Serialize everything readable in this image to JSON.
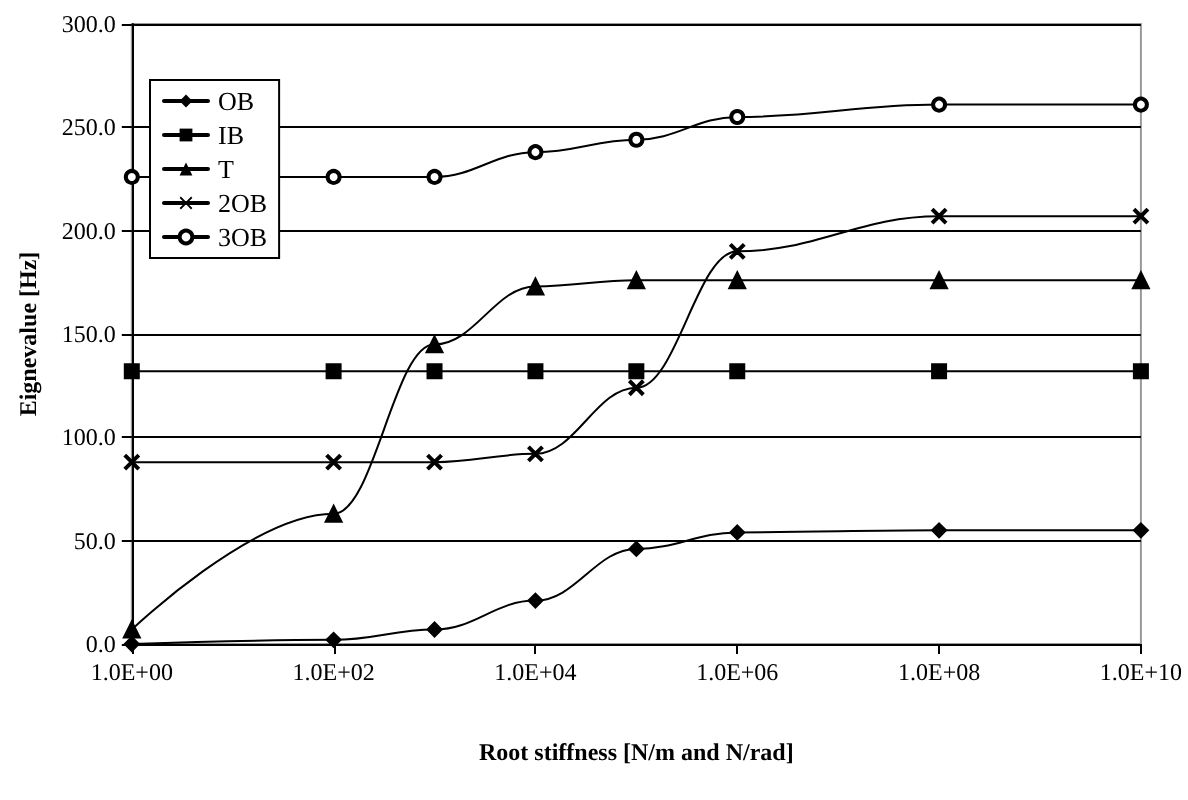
{
  "chart_data": {
    "type": "line",
    "xlabel": "Root stiffness [N/m and N/rad]",
    "ylabel": "Eignevalue [Hz]",
    "x": [
      1,
      100,
      1000,
      10000,
      100000,
      1000000,
      100000000,
      10000000000
    ],
    "series": [
      {
        "name": "OB",
        "color": "#000000",
        "marker": "diamond",
        "values": [
          0,
          2,
          7,
          21,
          46,
          54,
          55,
          55
        ]
      },
      {
        "name": "IB",
        "color": "#000000",
        "marker": "square",
        "values": [
          132,
          132,
          132,
          132,
          132,
          132,
          132,
          132
        ]
      },
      {
        "name": "T",
        "color": "#000000",
        "marker": "triangle",
        "values": [
          7,
          63,
          145,
          173,
          176,
          176,
          176,
          176
        ]
      },
      {
        "name": "2OB",
        "color": "#000000",
        "marker": "cross",
        "values": [
          88,
          88,
          88,
          92,
          124,
          190,
          207,
          207
        ]
      },
      {
        "name": "3OB",
        "color": "#000000",
        "marker": "circle",
        "values": [
          226,
          226,
          226,
          238,
          244,
          255,
          261,
          261
        ]
      }
    ],
    "log": "x",
    "xlim": [
      1,
      10000000000
    ],
    "xticks": [
      {
        "value": 1,
        "label": "1.0E+00"
      },
      {
        "value": 100,
        "label": "1.0E+02"
      },
      {
        "value": 10000,
        "label": "1.0E+04"
      },
      {
        "value": 1000000,
        "label": "1.0E+06"
      },
      {
        "value": 100000000,
        "label": "1.0E+08"
      },
      {
        "value": 10000000000,
        "label": "1.0E+10"
      }
    ],
    "ylim": [
      0,
      300
    ],
    "yticks": [
      {
        "value": 0,
        "label": "0.0"
      },
      {
        "value": 50,
        "label": "50.0"
      },
      {
        "value": 100,
        "label": "100.0"
      },
      {
        "value": 150,
        "label": "150.0"
      },
      {
        "value": 200,
        "label": "200.0"
      },
      {
        "value": 250,
        "label": "250.0"
      },
      {
        "value": 300,
        "label": "300.0"
      }
    ],
    "grid": "y",
    "legend": "top left",
    "line_style": "solid"
  }
}
